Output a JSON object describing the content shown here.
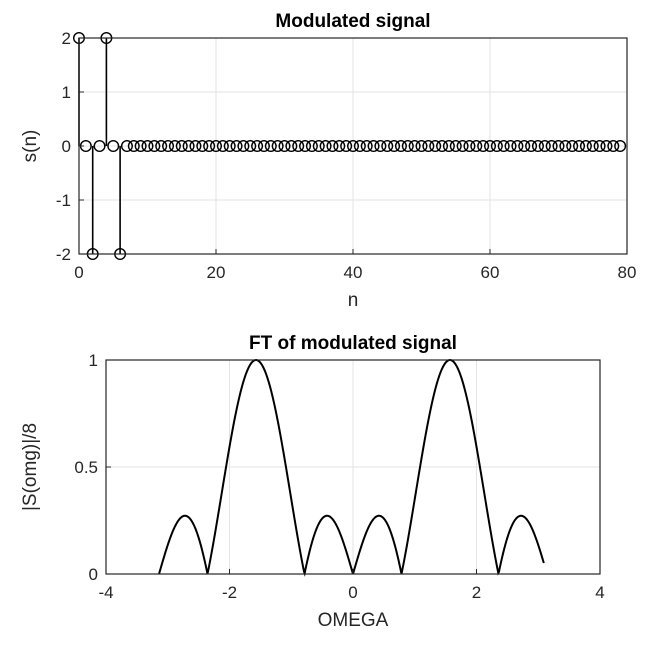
{
  "chart_data": [
    {
      "type": "stem",
      "title": "Modulated signal",
      "xlabel": "n",
      "ylabel": "s(n)",
      "xlim": [
        0,
        80
      ],
      "ylim": [
        -2,
        2
      ],
      "xticks": [
        0,
        20,
        40,
        60,
        80
      ],
      "yticks": [
        -2,
        -1,
        0,
        1,
        2
      ],
      "grid": true,
      "n_start": 0,
      "n_end": 79,
      "points": [
        {
          "x": 0,
          "y": 2
        },
        {
          "x": 1,
          "y": 0
        },
        {
          "x": 2,
          "y": -2
        },
        {
          "x": 3,
          "y": 0
        },
        {
          "x": 4,
          "y": 2
        },
        {
          "x": 5,
          "y": 0
        },
        {
          "x": 6,
          "y": -2
        }
      ],
      "rest_value": 0
    },
    {
      "type": "line",
      "title": "FT of modulated signal",
      "xlabel": "OMEGA",
      "ylabel": "|S(omg)|/8",
      "xlim": [
        -4,
        4
      ],
      "ylim": [
        0,
        1
      ],
      "xticks": [
        -4,
        -2,
        0,
        2,
        4
      ],
      "yticks": [
        0,
        0.5,
        1
      ],
      "grid": true,
      "x_range": [
        -3.14,
        3.09
      ],
      "peaks": [
        {
          "x": -1.571,
          "y": 1
        },
        {
          "x": 1.571,
          "y": 1
        }
      ],
      "zeros": [
        -2.356,
        -0.785,
        0,
        0.785,
        2.356
      ]
    }
  ]
}
